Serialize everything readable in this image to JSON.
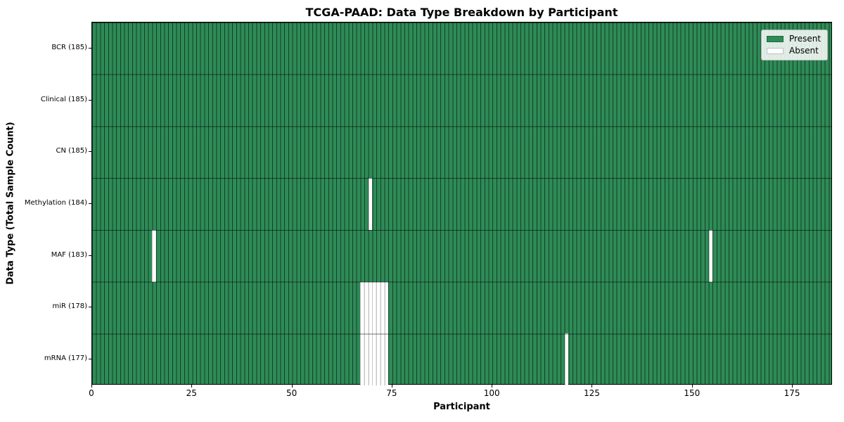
{
  "chart_data": {
    "type": "heatmap",
    "title": "TCGA-PAAD: Data Type Breakdown by Participant",
    "xlabel": "Participant",
    "ylabel": "Data Type (Total Sample Count)",
    "n_participants": 185,
    "x_range": [
      0,
      185
    ],
    "x_ticks": [
      0,
      25,
      50,
      75,
      100,
      125,
      150,
      175
    ],
    "rows": [
      {
        "label": "BCR (185)",
        "data_type": "BCR",
        "present_count": 185,
        "absent": []
      },
      {
        "label": "Clinical (185)",
        "data_type": "Clinical",
        "present_count": 185,
        "absent": []
      },
      {
        "label": "CN (185)",
        "data_type": "CN",
        "present_count": 185,
        "absent": []
      },
      {
        "label": "Methylation (184)",
        "data_type": "Methylation",
        "present_count": 184,
        "absent": [
          69
        ]
      },
      {
        "label": "MAF (183)",
        "data_type": "MAF",
        "present_count": 183,
        "absent": [
          15,
          154
        ]
      },
      {
        "label": "miR (178)",
        "data_type": "miR",
        "present_count": 178,
        "absent": [
          67,
          68,
          69,
          70,
          71,
          72,
          73
        ]
      },
      {
        "label": "mRNA (177)",
        "data_type": "mRNA",
        "present_count": 177,
        "absent": [
          67,
          68,
          69,
          70,
          71,
          72,
          73,
          118
        ]
      }
    ],
    "legend": [
      {
        "label": "Present",
        "color": "#2e8b57"
      },
      {
        "label": "Absent",
        "color": "#ffffff"
      }
    ],
    "legend_position": "upper right",
    "grid": "per-participant vertical cell edges and horizontal row separators"
  }
}
